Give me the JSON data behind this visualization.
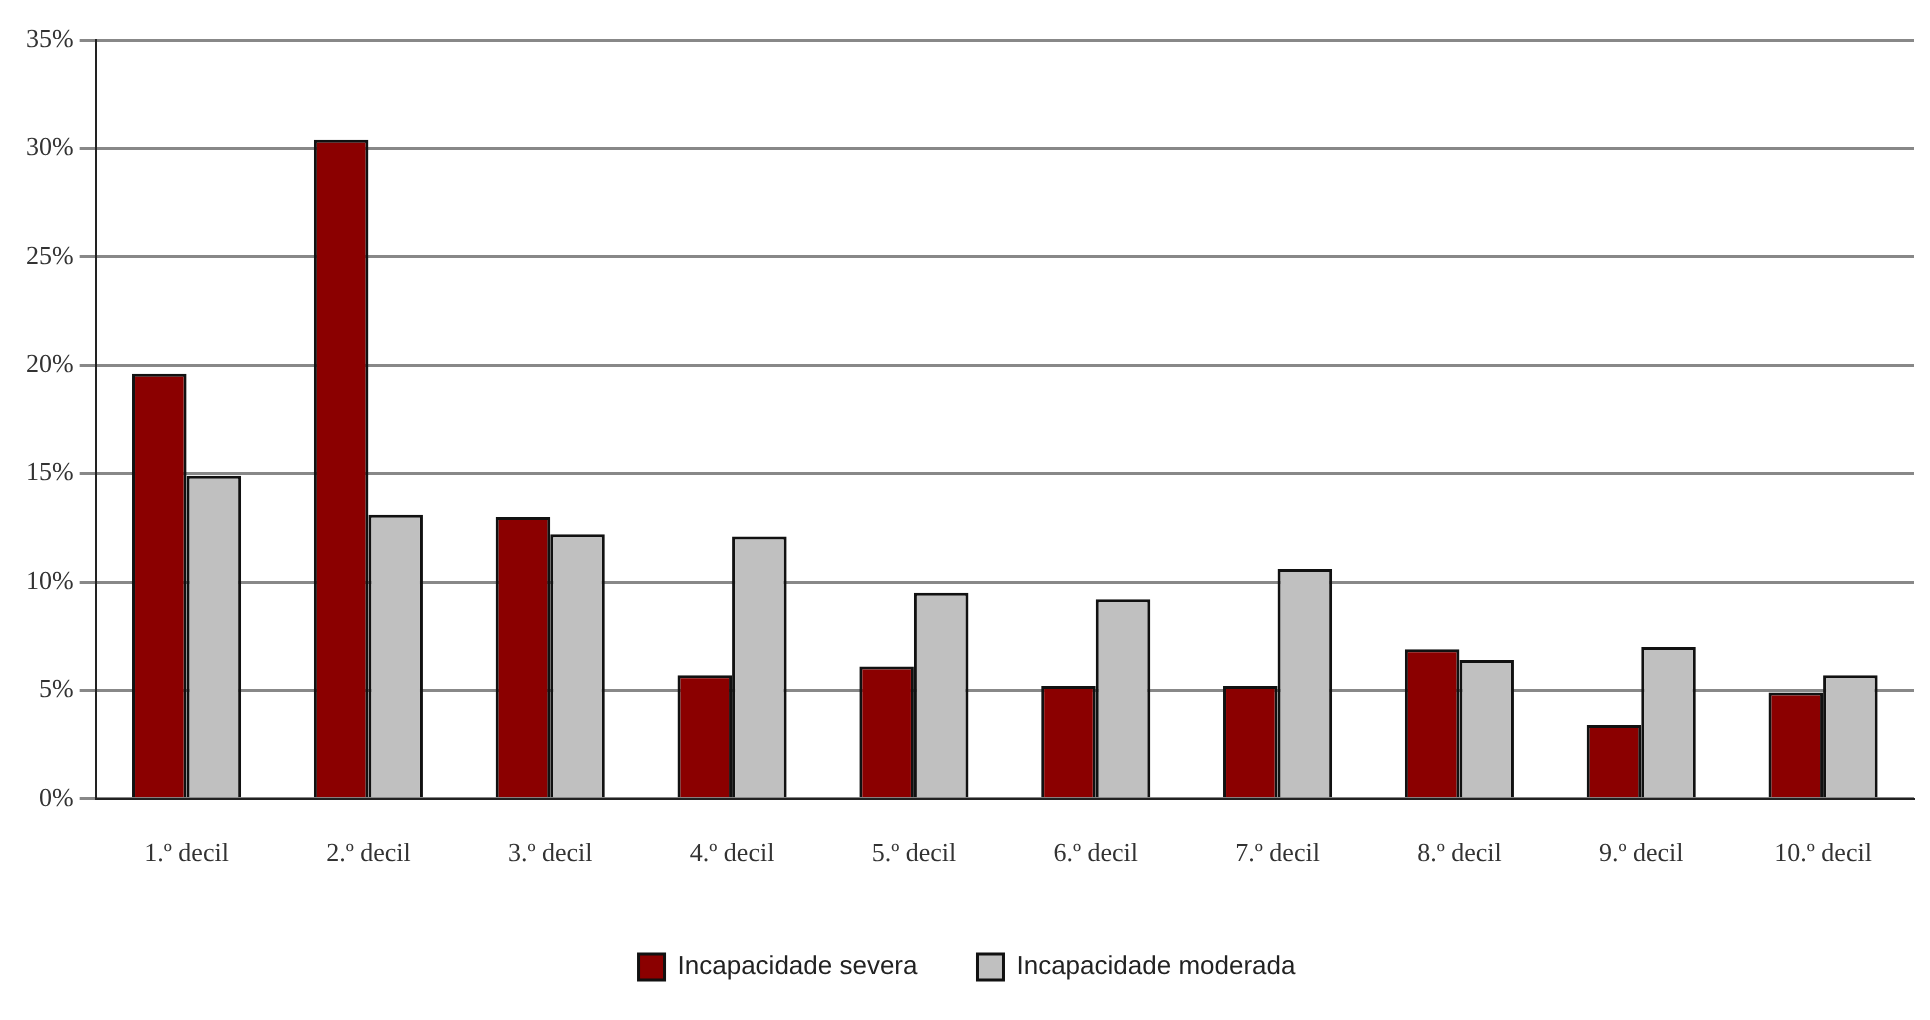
{
  "chart_data": {
    "type": "bar",
    "categories": [
      "1.º decil",
      "2.º decil",
      "3.º decil",
      "4.º decil",
      "5.º decil",
      "6.º decil",
      "7.º decil",
      "8.º decil",
      "9.º decil",
      "10.º decil"
    ],
    "series": [
      {
        "name": "Incapacidade severa",
        "color": "#8b0000",
        "values": [
          19.6,
          30.4,
          13,
          5.7,
          6.1,
          5.2,
          5.2,
          6.9,
          3.4,
          4.9
        ]
      },
      {
        "name": "Incapacidade moderada",
        "color": "#c0c0c0",
        "values": [
          14.9,
          13.1,
          12.2,
          12.1,
          9.5,
          9.2,
          10.6,
          6.4,
          7,
          5.7
        ]
      }
    ],
    "ylim": [
      0,
      35
    ],
    "yticks": [
      {
        "value": 0,
        "label": "0%"
      },
      {
        "value": 5,
        "label": "5%"
      },
      {
        "value": 10,
        "label": "10%"
      },
      {
        "value": 15,
        "label": "15%"
      },
      {
        "value": 20,
        "label": "20%"
      },
      {
        "value": 25,
        "label": "25%"
      },
      {
        "value": 30,
        "label": "30%"
      },
      {
        "value": 35,
        "label": "35%"
      }
    ],
    "grid": "y",
    "legend": "bottom"
  }
}
